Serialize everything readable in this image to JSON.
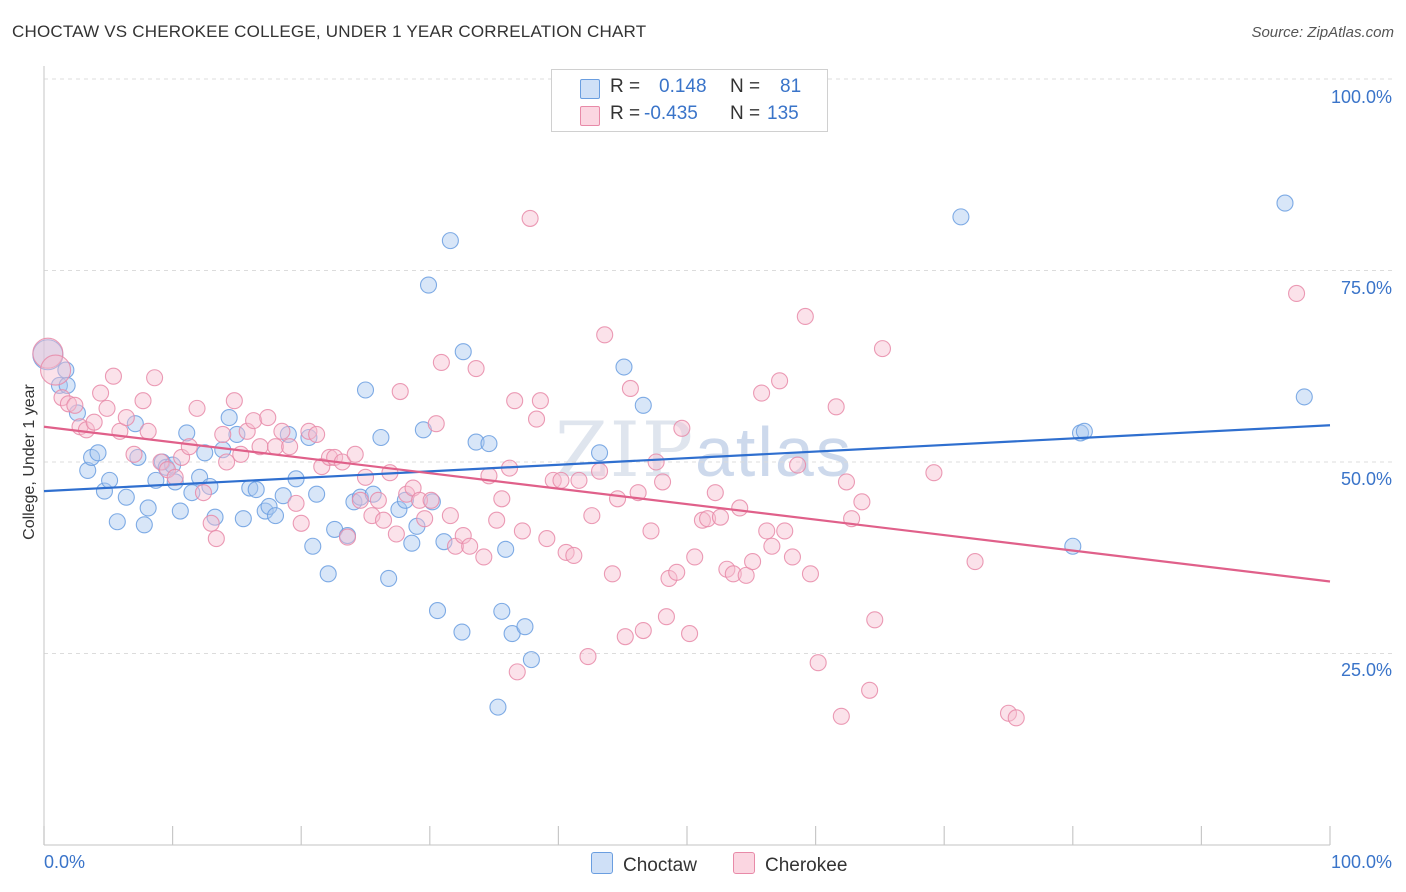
{
  "header": {
    "title": "CHOCTAW VS CHEROKEE COLLEGE, UNDER 1 YEAR CORRELATION CHART",
    "source": "Source: ZipAtlas.com"
  },
  "watermark": {
    "zip": "ZIP",
    "atlas": "atlas"
  },
  "legend": {
    "rows": [
      {
        "r_label": "R =",
        "r_value": "0.148",
        "n_label": "N =",
        "n_value": "81",
        "color": "#a9c8f0",
        "border": "#6a9ee0"
      },
      {
        "r_label": "R =",
        "r_value": "-0.435",
        "n_label": "N =",
        "n_value": "135",
        "color": "#f7bfd0",
        "border": "#e88aa8"
      }
    ]
  },
  "bottom_legend": [
    {
      "label": "Choctaw",
      "color": "#a9c8f0",
      "border": "#6a9ee0"
    },
    {
      "label": "Cherokee",
      "color": "#f7bfd0",
      "border": "#e88aa8"
    }
  ],
  "chart_data": {
    "type": "scatter",
    "title": "CHOCTAW VS CHEROKEE COLLEGE, UNDER 1 YEAR CORRELATION CHART",
    "xlabel": "",
    "ylabel": "College, Under 1 year",
    "xlim": [
      0,
      100
    ],
    "ylim": [
      0,
      100
    ],
    "x_tick_labels": {
      "min": "0.0%",
      "max": "100.0%"
    },
    "y_tick_labels": [
      "100.0%",
      "75.0%",
      "50.0%",
      "25.0%"
    ],
    "y_tick_values": [
      100,
      75,
      50,
      25
    ],
    "grid": true,
    "series": [
      {
        "name": "Choctaw",
        "color": "#6a9ee0",
        "fill": "#a9c8f0",
        "trend": {
          "x": [
            0,
            100
          ],
          "y": [
            46.2,
            54.8
          ],
          "color": "#2f6fcf"
        },
        "points": [
          [
            0.3,
            64
          ],
          [
            1.2,
            60
          ],
          [
            1.7,
            62
          ],
          [
            1.8,
            60
          ],
          [
            2.6,
            56.4
          ],
          [
            3.4,
            48.9
          ],
          [
            3.7,
            50.6
          ],
          [
            4.2,
            51.2
          ],
          [
            4.7,
            46.2
          ],
          [
            5.1,
            47.6
          ],
          [
            5.7,
            42.2
          ],
          [
            6.4,
            45.4
          ],
          [
            7.1,
            55
          ],
          [
            7.3,
            50.6
          ],
          [
            7.8,
            41.8
          ],
          [
            8.1,
            44
          ],
          [
            8.7,
            47.6
          ],
          [
            9.2,
            50
          ],
          [
            9.5,
            49.3
          ],
          [
            10,
            49.6
          ],
          [
            10.2,
            47.4
          ],
          [
            10.6,
            43.6
          ],
          [
            11.1,
            53.8
          ],
          [
            11.5,
            46
          ],
          [
            12.1,
            48
          ],
          [
            12.5,
            51.2
          ],
          [
            12.9,
            46.8
          ],
          [
            13.3,
            42.8
          ],
          [
            13.9,
            51.6
          ],
          [
            14.4,
            55.8
          ],
          [
            15,
            53.6
          ],
          [
            15.5,
            42.6
          ],
          [
            16,
            46.6
          ],
          [
            16.5,
            46.4
          ],
          [
            17.2,
            43.6
          ],
          [
            17.5,
            44.2
          ],
          [
            18,
            43
          ],
          [
            18.6,
            45.6
          ],
          [
            19,
            53.6
          ],
          [
            19.6,
            47.8
          ],
          [
            20.6,
            53.2
          ],
          [
            20.9,
            39
          ],
          [
            21.2,
            45.8
          ],
          [
            22.1,
            35.4
          ],
          [
            22.6,
            41.2
          ],
          [
            23.6,
            40.4
          ],
          [
            24.1,
            44.8
          ],
          [
            24.6,
            45.4
          ],
          [
            25,
            59.4
          ],
          [
            25.6,
            45.8
          ],
          [
            26.2,
            53.2
          ],
          [
            26.8,
            34.8
          ],
          [
            27.6,
            43.8
          ],
          [
            28.1,
            45
          ],
          [
            28.6,
            39.4
          ],
          [
            29,
            41.6
          ],
          [
            29.5,
            54.2
          ],
          [
            29.9,
            73.1
          ],
          [
            30.2,
            44.8
          ],
          [
            30.6,
            30.6
          ],
          [
            31.1,
            39.6
          ],
          [
            31.6,
            78.9
          ],
          [
            32.5,
            27.8
          ],
          [
            32.6,
            64.4
          ],
          [
            33.6,
            52.6
          ],
          [
            34.6,
            52.4
          ],
          [
            35.3,
            18
          ],
          [
            35.6,
            30.5
          ],
          [
            35.9,
            38.6
          ],
          [
            36.4,
            27.6
          ],
          [
            37.4,
            28.5
          ],
          [
            37.9,
            24.2
          ],
          [
            43.2,
            51.2
          ],
          [
            45.1,
            62.4
          ],
          [
            46.6,
            57.4
          ],
          [
            71.3,
            82
          ],
          [
            80,
            39
          ],
          [
            80.6,
            53.8
          ],
          [
            80.9,
            54
          ],
          [
            96.5,
            83.8
          ],
          [
            98,
            58.5
          ]
        ]
      },
      {
        "name": "Cherokee",
        "color": "#e88aa8",
        "fill": "#f7bfd0",
        "trend": {
          "x": [
            0,
            100
          ],
          "y": [
            54.6,
            34.4
          ],
          "color": "#e0608a"
        },
        "points": [
          [
            0.3,
            64.2
          ],
          [
            0.9,
            62
          ],
          [
            1.4,
            58.4
          ],
          [
            1.9,
            57.6
          ],
          [
            2.4,
            57.4
          ],
          [
            2.8,
            54.6
          ],
          [
            3.3,
            54.2
          ],
          [
            3.9,
            55.2
          ],
          [
            4.4,
            59
          ],
          [
            4.9,
            57
          ],
          [
            5.4,
            61.2
          ],
          [
            5.9,
            54
          ],
          [
            6.4,
            55.8
          ],
          [
            7,
            51
          ],
          [
            7.7,
            58
          ],
          [
            8.1,
            54
          ],
          [
            8.6,
            61
          ],
          [
            9.1,
            50
          ],
          [
            9.6,
            49
          ],
          [
            10.2,
            48
          ],
          [
            10.7,
            50.6
          ],
          [
            11.3,
            52
          ],
          [
            11.9,
            57
          ],
          [
            12.4,
            46
          ],
          [
            13,
            42
          ],
          [
            13.4,
            40
          ],
          [
            13.9,
            53.6
          ],
          [
            14.2,
            50
          ],
          [
            14.8,
            58
          ],
          [
            15.3,
            51
          ],
          [
            15.8,
            54
          ],
          [
            16.3,
            55.4
          ],
          [
            16.8,
            52
          ],
          [
            17.4,
            55.8
          ],
          [
            18,
            52
          ],
          [
            18.5,
            54
          ],
          [
            19.1,
            52
          ],
          [
            19.6,
            44.6
          ],
          [
            20,
            42
          ],
          [
            20.6,
            54
          ],
          [
            21.2,
            53.6
          ],
          [
            21.6,
            49.4
          ],
          [
            22.2,
            50.6
          ],
          [
            22.6,
            50.6
          ],
          [
            23.2,
            50
          ],
          [
            23.6,
            40.2
          ],
          [
            24.2,
            51
          ],
          [
            24.6,
            45
          ],
          [
            25,
            48
          ],
          [
            25.5,
            43
          ],
          [
            26,
            45
          ],
          [
            26.4,
            42.4
          ],
          [
            26.9,
            48.6
          ],
          [
            27.4,
            40.6
          ],
          [
            27.7,
            59.2
          ],
          [
            28.2,
            45.8
          ],
          [
            28.7,
            46.6
          ],
          [
            29.2,
            45
          ],
          [
            29.6,
            42.6
          ],
          [
            30.1,
            45
          ],
          [
            30.5,
            55
          ],
          [
            30.9,
            63
          ],
          [
            31.6,
            43
          ],
          [
            32,
            39
          ],
          [
            32.6,
            40.4
          ],
          [
            33.1,
            39
          ],
          [
            33.6,
            62.2
          ],
          [
            34.2,
            37.6
          ],
          [
            34.6,
            48.2
          ],
          [
            35.2,
            42.4
          ],
          [
            35.6,
            45.2
          ],
          [
            36.2,
            49.2
          ],
          [
            36.6,
            58
          ],
          [
            36.8,
            22.6
          ],
          [
            37.2,
            41
          ],
          [
            37.8,
            81.8
          ],
          [
            38.3,
            55.6
          ],
          [
            38.6,
            58
          ],
          [
            39.1,
            40
          ],
          [
            39.6,
            47.6
          ],
          [
            40.2,
            47.6
          ],
          [
            40.6,
            38.2
          ],
          [
            41.2,
            37.8
          ],
          [
            41.6,
            47.6
          ],
          [
            42.3,
            24.6
          ],
          [
            42.6,
            43
          ],
          [
            43.2,
            48.8
          ],
          [
            43.6,
            66.6
          ],
          [
            44.2,
            35.4
          ],
          [
            44.6,
            45.2
          ],
          [
            45.2,
            27.2
          ],
          [
            45.6,
            59.6
          ],
          [
            46.2,
            46
          ],
          [
            46.6,
            28
          ],
          [
            47.2,
            41
          ],
          [
            47.6,
            50
          ],
          [
            48.1,
            47.4
          ],
          [
            48.4,
            29.8
          ],
          [
            48.6,
            34.8
          ],
          [
            49.2,
            35.6
          ],
          [
            49.6,
            54.4
          ],
          [
            50.2,
            27.6
          ],
          [
            50.6,
            37.6
          ],
          [
            51.2,
            42.4
          ],
          [
            51.6,
            42.6
          ],
          [
            52.2,
            46
          ],
          [
            52.6,
            42.8
          ],
          [
            53.1,
            36
          ],
          [
            53.6,
            35.4
          ],
          [
            54.1,
            44
          ],
          [
            54.6,
            35.2
          ],
          [
            55.1,
            37
          ],
          [
            55.8,
            59
          ],
          [
            56.2,
            41
          ],
          [
            56.6,
            39
          ],
          [
            57.2,
            60.6
          ],
          [
            57.6,
            41
          ],
          [
            58.2,
            37.6
          ],
          [
            58.6,
            49.6
          ],
          [
            59.2,
            69
          ],
          [
            59.6,
            35.4
          ],
          [
            60.2,
            23.8
          ],
          [
            61.6,
            57.2
          ],
          [
            62,
            16.8
          ],
          [
            62.4,
            47.4
          ],
          [
            62.8,
            42.6
          ],
          [
            63.6,
            44.8
          ],
          [
            64.2,
            20.2
          ],
          [
            64.6,
            29.4
          ],
          [
            65.2,
            64.8
          ],
          [
            69.2,
            48.6
          ],
          [
            72.4,
            37
          ],
          [
            75,
            17.2
          ],
          [
            75.6,
            16.6
          ],
          [
            97.4,
            72
          ]
        ]
      }
    ]
  }
}
